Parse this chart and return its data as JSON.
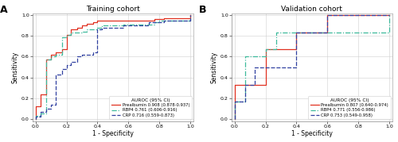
{
  "panel_A": {
    "title": "Training cohort",
    "label": "A",
    "legend_title": "AUROC (95% CI)",
    "curves": {
      "prealbumin": {
        "label": "Prealbumin 0.908 (0.878-0.937)",
        "color": "#e03020",
        "linestyle": "solid",
        "x": [
          0.0,
          0.0,
          0.03,
          0.03,
          0.07,
          0.07,
          0.1,
          0.1,
          0.13,
          0.13,
          0.17,
          0.17,
          0.2,
          0.2,
          0.23,
          0.23,
          0.27,
          0.27,
          0.3,
          0.3,
          0.33,
          0.33,
          0.37,
          0.37,
          0.4,
          0.4,
          0.43,
          0.43,
          0.6,
          0.6,
          0.63,
          0.63,
          0.67,
          0.67,
          0.7,
          0.7,
          0.73,
          0.73,
          0.77,
          0.77,
          0.8,
          0.8,
          0.83,
          0.83,
          0.87,
          0.87,
          0.9,
          0.9,
          0.93,
          0.93,
          1.0,
          1.0
        ],
        "y": [
          0.0,
          0.12,
          0.12,
          0.24,
          0.24,
          0.57,
          0.57,
          0.62,
          0.62,
          0.64,
          0.64,
          0.67,
          0.67,
          0.81,
          0.81,
          0.86,
          0.86,
          0.88,
          0.88,
          0.9,
          0.9,
          0.92,
          0.92,
          0.93,
          0.93,
          0.95,
          0.95,
          0.95,
          0.95,
          0.95,
          0.95,
          0.95,
          0.95,
          0.95,
          0.95,
          0.95,
          0.95,
          0.95,
          0.95,
          0.96,
          0.96,
          0.96,
          0.96,
          0.97,
          0.97,
          0.97,
          0.97,
          0.97,
          0.97,
          0.97,
          0.97,
          1.0
        ]
      },
      "rbp4": {
        "label": "RBP4 0.761 (0.606-0.916)",
        "color": "#3dba9c",
        "linestyle": "dashdot",
        "x": [
          0.0,
          0.0,
          0.03,
          0.03,
          0.07,
          0.07,
          0.1,
          0.1,
          0.13,
          0.13,
          0.17,
          0.17,
          0.2,
          0.2,
          0.23,
          0.23,
          0.27,
          0.27,
          0.3,
          0.3,
          0.33,
          0.33,
          0.37,
          0.37,
          0.4,
          0.4,
          0.43,
          0.43,
          0.47,
          0.47,
          0.5,
          0.5,
          0.53,
          0.53,
          0.57,
          0.57,
          0.6,
          0.6,
          0.63,
          0.63,
          0.67,
          0.67,
          0.7,
          0.7,
          0.73,
          0.73,
          0.77,
          0.77,
          0.8,
          0.8,
          0.87,
          0.87,
          0.9,
          0.9,
          0.93,
          0.93,
          1.0,
          1.0
        ],
        "y": [
          0.0,
          0.03,
          0.03,
          0.05,
          0.05,
          0.57,
          0.57,
          0.6,
          0.6,
          0.62,
          0.62,
          0.79,
          0.79,
          0.81,
          0.81,
          0.83,
          0.83,
          0.83,
          0.83,
          0.84,
          0.84,
          0.86,
          0.86,
          0.86,
          0.86,
          0.88,
          0.88,
          0.9,
          0.9,
          0.9,
          0.9,
          0.9,
          0.9,
          0.9,
          0.9,
          0.91,
          0.91,
          0.91,
          0.91,
          0.91,
          0.91,
          0.91,
          0.91,
          0.91,
          0.91,
          0.91,
          0.91,
          0.93,
          0.93,
          0.95,
          0.95,
          0.95,
          0.95,
          0.95,
          0.95,
          0.95,
          0.95,
          1.0
        ]
      },
      "crp": {
        "label": "CRP 0.716 (0.559-0.873)",
        "color": "#3040a0",
        "linestyle": "dashed",
        "x": [
          0.0,
          0.0,
          0.03,
          0.03,
          0.07,
          0.07,
          0.1,
          0.1,
          0.13,
          0.13,
          0.17,
          0.17,
          0.2,
          0.2,
          0.23,
          0.23,
          0.27,
          0.27,
          0.3,
          0.3,
          0.33,
          0.33,
          0.37,
          0.37,
          0.4,
          0.4,
          0.43,
          0.43,
          0.47,
          0.47,
          0.5,
          0.5,
          0.57,
          0.57,
          0.6,
          0.6,
          0.63,
          0.63,
          0.67,
          0.67,
          0.7,
          0.7,
          0.73,
          0.73,
          0.8,
          0.8,
          0.83,
          0.83,
          0.87,
          0.87,
          0.9,
          0.9,
          0.93,
          0.93,
          1.0,
          1.0
        ],
        "y": [
          0.0,
          0.02,
          0.02,
          0.07,
          0.07,
          0.1,
          0.1,
          0.14,
          0.14,
          0.43,
          0.43,
          0.48,
          0.48,
          0.52,
          0.52,
          0.55,
          0.55,
          0.6,
          0.6,
          0.62,
          0.62,
          0.62,
          0.62,
          0.64,
          0.64,
          0.86,
          0.86,
          0.88,
          0.88,
          0.88,
          0.88,
          0.88,
          0.88,
          0.9,
          0.9,
          0.9,
          0.9,
          0.9,
          0.9,
          0.9,
          0.9,
          0.9,
          0.9,
          0.93,
          0.93,
          0.93,
          0.93,
          0.95,
          0.95,
          0.95,
          0.95,
          0.95,
          0.95,
          0.95,
          0.95,
          1.0
        ]
      }
    }
  },
  "panel_B": {
    "title": "Validation cohort",
    "label": "B",
    "legend_title": "AUROC (95% CI)",
    "curves": {
      "prealbumin": {
        "label": "Prealbumin 0.807 (0.640-0.974)",
        "color": "#e03020",
        "linestyle": "solid",
        "x": [
          0.0,
          0.0,
          0.2,
          0.2,
          0.4,
          0.4,
          0.6,
          0.6,
          1.0,
          1.0
        ],
        "y": [
          0.0,
          0.33,
          0.33,
          0.67,
          0.67,
          0.83,
          0.83,
          1.0,
          1.0,
          1.0
        ]
      },
      "rbp4": {
        "label": "RBP4 0.771 (0.556-0.986)",
        "color": "#3dba9c",
        "linestyle": "dashdot",
        "x": [
          0.0,
          0.0,
          0.07,
          0.07,
          0.2,
          0.2,
          0.27,
          0.27,
          0.4,
          0.4,
          0.6,
          0.6,
          1.0,
          1.0
        ],
        "y": [
          0.0,
          0.17,
          0.17,
          0.6,
          0.6,
          0.67,
          0.67,
          0.83,
          0.83,
          0.83,
          0.83,
          0.83,
          0.83,
          1.0
        ]
      },
      "crp": {
        "label": "CRP 0.753 (0.549-0.958)",
        "color": "#3040a0",
        "linestyle": "dashed",
        "x": [
          0.0,
          0.0,
          0.07,
          0.07,
          0.13,
          0.13,
          0.2,
          0.2,
          0.27,
          0.27,
          0.4,
          0.4,
          0.6,
          0.6,
          1.0,
          1.0
        ],
        "y": [
          0.0,
          0.17,
          0.17,
          0.33,
          0.33,
          0.5,
          0.5,
          0.5,
          0.5,
          0.5,
          0.5,
          0.83,
          0.83,
          1.0,
          1.0,
          1.0
        ]
      }
    }
  },
  "xlabel": "1 - Specificity",
  "ylabel": "Sensitivity",
  "xlim": [
    -0.02,
    1.02
  ],
  "ylim": [
    -0.02,
    1.02
  ],
  "xticks": [
    0.0,
    0.2,
    0.4,
    0.6,
    0.8,
    1.0
  ],
  "yticks": [
    0.0,
    0.2,
    0.4,
    0.6,
    0.8,
    1.0
  ],
  "tick_labels": [
    "0.0",
    "0.2",
    "0.4",
    "0.6",
    "0.8",
    "1.0"
  ],
  "grid_color": "#d0d0d0",
  "background_color": "#ffffff",
  "linewidth": 0.9
}
